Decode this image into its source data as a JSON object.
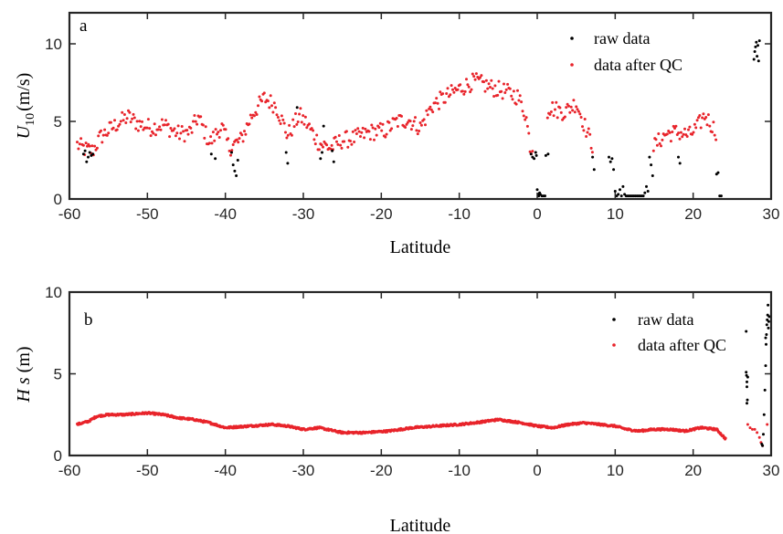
{
  "colors": {
    "raw": "#000000",
    "qc": "#e8242b",
    "axis": "#262626"
  },
  "chart_data": [
    {
      "type": "scatter",
      "panel_label": "a",
      "xlabel": "Latitude",
      "ylabel_main": "U",
      "ylabel_sub": "10",
      "ylabel_unit": "(m/s)",
      "xlim": [
        -60,
        30
      ],
      "ylim": [
        0,
        12
      ],
      "xticks": [
        "-60",
        "-50",
        "-40",
        "-30",
        "-20",
        "-10",
        "0",
        "10",
        "20",
        "30"
      ],
      "yticks": [
        "0",
        "5",
        "10"
      ],
      "legend_position": "top-right",
      "series": [
        {
          "name": "raw data",
          "color": "raw",
          "points": [
            [
              -58.2,
              2.9
            ],
            [
              -58.0,
              3.1
            ],
            [
              -57.8,
              2.4
            ],
            [
              -57.6,
              2.7
            ],
            [
              -57.4,
              3.0
            ],
            [
              -57.2,
              2.8
            ],
            [
              -57.0,
              2.9
            ],
            [
              -41.8,
              2.9
            ],
            [
              -41.3,
              2.6
            ],
            [
              -39.2,
              3.0
            ],
            [
              -39.0,
              2.2
            ],
            [
              -38.8,
              1.8
            ],
            [
              -38.6,
              1.5
            ],
            [
              -38.4,
              2.5
            ],
            [
              -32.2,
              3.0
            ],
            [
              -32.0,
              2.3
            ],
            [
              -30.8,
              5.9
            ],
            [
              -27.8,
              2.6
            ],
            [
              -27.6,
              3.0
            ],
            [
              -27.4,
              4.7
            ],
            [
              -26.3,
              3.1
            ],
            [
              -26.1,
              2.4
            ],
            [
              -0.8,
              2.9
            ],
            [
              -0.6,
              2.7
            ],
            [
              -0.4,
              2.6
            ],
            [
              -0.2,
              3.0
            ],
            [
              -0.1,
              2.8
            ],
            [
              0.0,
              0.6
            ],
            [
              0.1,
              0.3
            ],
            [
              0.2,
              0.2
            ],
            [
              0.3,
              0.4
            ],
            [
              0.4,
              0.3
            ],
            [
              0.6,
              0.2
            ],
            [
              0.8,
              0.2
            ],
            [
              1.0,
              0.2
            ],
            [
              1.1,
              2.8
            ],
            [
              1.4,
              2.9
            ],
            [
              7.1,
              2.7
            ],
            [
              7.3,
              1.9
            ],
            [
              9.2,
              2.7
            ],
            [
              9.4,
              2.4
            ],
            [
              9.6,
              2.6
            ],
            [
              9.8,
              1.9
            ],
            [
              10.0,
              0.5
            ],
            [
              10.2,
              0.2
            ],
            [
              10.4,
              0.3
            ],
            [
              10.6,
              0.6
            ],
            [
              10.8,
              0.2
            ],
            [
              11.0,
              0.8
            ],
            [
              11.2,
              0.3
            ],
            [
              11.4,
              0.2
            ],
            [
              11.6,
              0.2
            ],
            [
              11.8,
              0.2
            ],
            [
              12.0,
              0.2
            ],
            [
              12.2,
              0.2
            ],
            [
              12.4,
              0.2
            ],
            [
              12.6,
              0.2
            ],
            [
              12.8,
              0.2
            ],
            [
              13.0,
              0.2
            ],
            [
              13.2,
              0.2
            ],
            [
              13.4,
              0.2
            ],
            [
              13.6,
              0.2
            ],
            [
              13.8,
              0.4
            ],
            [
              14.0,
              0.8
            ],
            [
              14.2,
              0.5
            ],
            [
              14.4,
              2.7
            ],
            [
              14.6,
              2.2
            ],
            [
              14.8,
              1.5
            ],
            [
              18.1,
              2.7
            ],
            [
              18.3,
              2.3
            ],
            [
              23.0,
              1.6
            ],
            [
              23.2,
              1.7
            ],
            [
              23.4,
              0.2
            ],
            [
              23.6,
              0.2
            ],
            [
              27.8,
              9.0
            ],
            [
              27.9,
              9.5
            ],
            [
              28.0,
              9.8
            ],
            [
              28.1,
              10.1
            ],
            [
              28.2,
              9.2
            ],
            [
              28.3,
              9.9
            ],
            [
              28.4,
              8.9
            ],
            [
              28.5,
              10.2
            ]
          ]
        },
        {
          "name": "data after QC",
          "color": "qc",
          "knots": [
            [
              -59.0,
              3.5
            ],
            [
              -58.0,
              3.2
            ],
            [
              -57.0,
              3.1
            ],
            [
              -56.0,
              4.0
            ],
            [
              -54.0,
              4.8
            ],
            [
              -52.5,
              5.3
            ],
            [
              -51.0,
              4.8
            ],
            [
              -49.5,
              4.6
            ],
            [
              -48.0,
              4.8
            ],
            [
              -46.0,
              4.2
            ],
            [
              -44.5,
              4.3
            ],
            [
              -43.5,
              5.3
            ],
            [
              -42.0,
              3.6
            ],
            [
              -40.5,
              4.7
            ],
            [
              -39.5,
              3.3
            ],
            [
              -38.0,
              3.8
            ],
            [
              -36.5,
              5.5
            ],
            [
              -35.0,
              6.5
            ],
            [
              -33.5,
              6.0
            ],
            [
              -32.0,
              4.1
            ],
            [
              -30.5,
              5.4
            ],
            [
              -29.5,
              4.8
            ],
            [
              -28.0,
              3.6
            ],
            [
              -26.5,
              3.3
            ],
            [
              -25.0,
              3.8
            ],
            [
              -23.5,
              3.9
            ],
            [
              -21.5,
              4.3
            ],
            [
              -19.5,
              4.4
            ],
            [
              -18.0,
              5.0
            ],
            [
              -16.5,
              5.1
            ],
            [
              -15.0,
              4.6
            ],
            [
              -13.5,
              6.0
            ],
            [
              -12.0,
              6.5
            ],
            [
              -10.0,
              7.1
            ],
            [
              -8.0,
              7.6
            ],
            [
              -6.0,
              7.2
            ],
            [
              -4.0,
              6.9
            ],
            [
              -2.5,
              6.6
            ],
            [
              -1.5,
              5.5
            ],
            [
              -0.8,
              3.1
            ],
            [
              1.5,
              5.9
            ],
            [
              3.5,
              5.6
            ],
            [
              5.0,
              6.2
            ],
            [
              6.2,
              4.6
            ],
            [
              7.0,
              3.5
            ],
            [
              15.0,
              3.4
            ],
            [
              16.5,
              4.2
            ],
            [
              18.0,
              4.3
            ],
            [
              19.5,
              4.1
            ],
            [
              20.5,
              4.6
            ],
            [
              21.5,
              5.4
            ],
            [
              23.0,
              4.3
            ]
          ],
          "gaps": [
            [
              -0.6,
              1.2
            ],
            [
              7.2,
              14.8
            ]
          ]
        }
      ]
    },
    {
      "type": "scatter",
      "panel_label": "b",
      "xlabel": "Latitude",
      "ylabel_main": "H s",
      "ylabel_unit": "(m)",
      "xlim": [
        -60,
        30
      ],
      "ylim": [
        0,
        10
      ],
      "xticks": [
        "-60",
        "-50",
        "-40",
        "-30",
        "-20",
        "-10",
        "0",
        "10",
        "20",
        "30"
      ],
      "yticks": [
        "0",
        "5",
        "10"
      ],
      "legend_position": "top-right",
      "series": [
        {
          "name": "raw data",
          "color": "raw",
          "points": [
            [
              26.8,
              7.6
            ],
            [
              26.8,
              5.1
            ],
            [
              26.85,
              4.9
            ],
            [
              26.9,
              4.5
            ],
            [
              26.9,
              4.2
            ],
            [
              26.95,
              3.4
            ],
            [
              27.0,
              4.8
            ],
            [
              26.9,
              3.2
            ],
            [
              28.8,
              0.7
            ],
            [
              28.9,
              0.6
            ],
            [
              29.0,
              1.3
            ],
            [
              29.1,
              2.5
            ],
            [
              29.2,
              4.0
            ],
            [
              29.3,
              5.5
            ],
            [
              29.35,
              6.8
            ],
            [
              29.4,
              7.4
            ],
            [
              29.45,
              8.0
            ],
            [
              29.5,
              8.3
            ],
            [
              29.55,
              8.6
            ],
            [
              29.6,
              9.2
            ],
            [
              29.65,
              7.8
            ],
            [
              29.7,
              8.2
            ],
            [
              29.75,
              8.5
            ],
            [
              29.3,
              7.2
            ]
          ]
        },
        {
          "name": "data after QC",
          "color": "qc",
          "knots": [
            [
              -59.0,
              1.9
            ],
            [
              -57.5,
              2.1
            ],
            [
              -56.5,
              2.4
            ],
            [
              -55.0,
              2.5
            ],
            [
              -53.0,
              2.5
            ],
            [
              -50.0,
              2.6
            ],
            [
              -48.0,
              2.5
            ],
            [
              -46.0,
              2.3
            ],
            [
              -44.0,
              2.2
            ],
            [
              -42.0,
              2.0
            ],
            [
              -40.0,
              1.7
            ],
            [
              -37.0,
              1.8
            ],
            [
              -34.0,
              1.9
            ],
            [
              -32.0,
              1.8
            ],
            [
              -30.0,
              1.6
            ],
            [
              -28.0,
              1.7
            ],
            [
              -25.0,
              1.4
            ],
            [
              -22.0,
              1.4
            ],
            [
              -19.0,
              1.5
            ],
            [
              -16.0,
              1.7
            ],
            [
              -13.0,
              1.8
            ],
            [
              -10.0,
              1.9
            ],
            [
              -8.0,
              2.0
            ],
            [
              -5.0,
              2.2
            ],
            [
              -2.0,
              2.0
            ],
            [
              0.0,
              1.8
            ],
            [
              2.0,
              1.7
            ],
            [
              4.0,
              1.9
            ],
            [
              6.0,
              2.0
            ],
            [
              8.0,
              1.9
            ],
            [
              10.0,
              1.8
            ],
            [
              11.5,
              1.6
            ],
            [
              13.0,
              1.5
            ],
            [
              15.0,
              1.6
            ],
            [
              17.0,
              1.6
            ],
            [
              19.0,
              1.5
            ],
            [
              21.0,
              1.7
            ],
            [
              23.0,
              1.6
            ],
            [
              24.2,
              1.0
            ]
          ],
          "extra_points": [
            [
              27.0,
              1.9
            ],
            [
              27.3,
              1.7
            ],
            [
              27.6,
              1.6
            ],
            [
              27.9,
              1.6
            ],
            [
              28.2,
              1.4
            ],
            [
              28.5,
              1.1
            ],
            [
              28.7,
              0.8
            ],
            [
              28.9,
              0.6
            ],
            [
              29.5,
              1.9
            ]
          ]
        }
      ]
    }
  ]
}
